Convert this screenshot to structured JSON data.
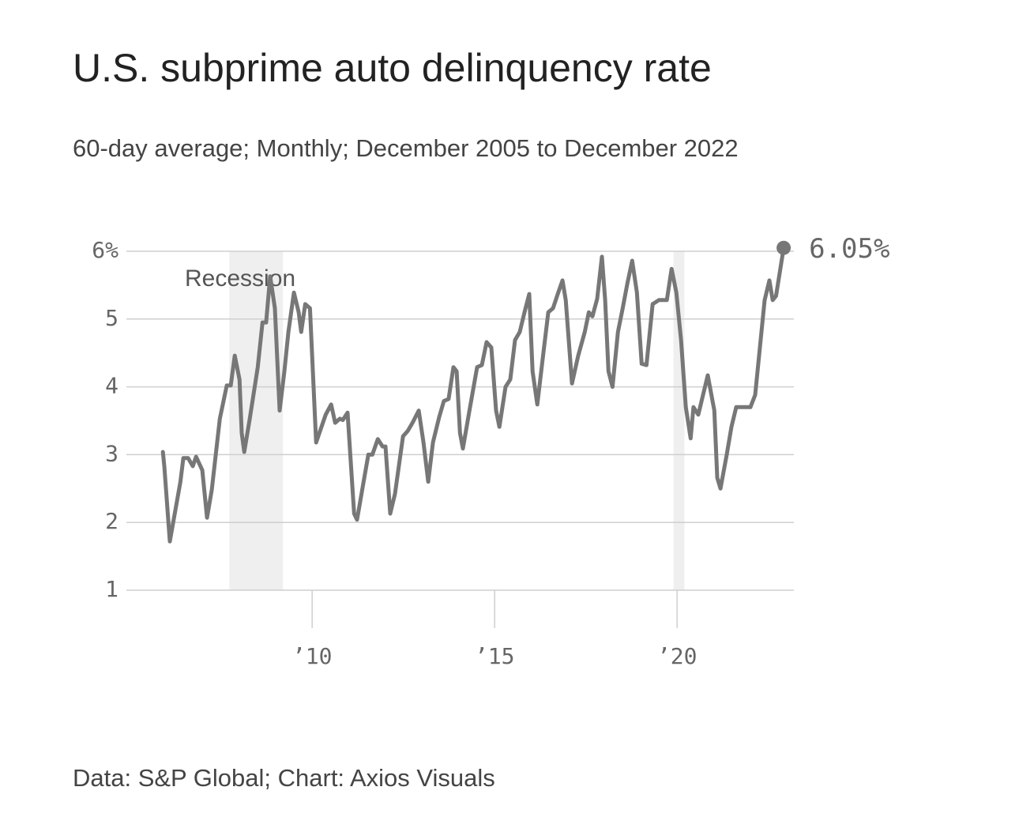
{
  "chart_data": {
    "type": "line",
    "title": "U.S. subprime auto delinquency rate",
    "subtitle": "60-day average; Monthly; December 2005 to December 2022",
    "source": "Data: S&P Global; Chart: Axios Visuals",
    "recession_label": "Recession",
    "recessions": [
      [
        2007.73,
        2009.2
      ],
      [
        2019.9,
        2020.2
      ]
    ],
    "color": "#777777",
    "recession_color": "#efefef",
    "grid": true,
    "xlim": [
      2004.91,
      2023.2
    ],
    "xticks": [
      {
        "value": 2010,
        "label": "’10"
      },
      {
        "value": 2015,
        "label": "’15"
      },
      {
        "value": 2020,
        "label": "’20"
      }
    ],
    "ylim": [
      1,
      6
    ],
    "yticks": [
      1,
      2,
      3,
      4,
      5,
      {
        "value": 6,
        "label": "6%"
      }
    ],
    "x": [
      2005.91,
      2005.95,
      2006.1,
      2006.39,
      2006.47,
      2006.6,
      2006.73,
      2006.82,
      2006.99,
      2007.12,
      2007.25,
      2007.47,
      2007.66,
      2007.77,
      2007.88,
      2008.01,
      2008.07,
      2008.14,
      2008.29,
      2008.51,
      2008.64,
      2008.74,
      2008.85,
      2008.98,
      2009.11,
      2009.24,
      2009.35,
      2009.5,
      2009.63,
      2009.7,
      2009.81,
      2009.94,
      2010.11,
      2010.37,
      2010.52,
      2010.63,
      2010.76,
      2010.84,
      2010.97,
      2011.15,
      2011.23,
      2011.41,
      2011.54,
      2011.65,
      2011.8,
      2011.93,
      2012.01,
      2012.14,
      2012.27,
      2012.49,
      2012.62,
      2012.75,
      2012.92,
      2013.05,
      2013.18,
      2013.31,
      2013.48,
      2013.61,
      2013.74,
      2013.87,
      2013.96,
      2014.05,
      2014.13,
      2014.31,
      2014.52,
      2014.65,
      2014.78,
      2014.91,
      2015.04,
      2015.13,
      2015.3,
      2015.43,
      2015.56,
      2015.69,
      2015.82,
      2015.95,
      2016.04,
      2016.17,
      2016.34,
      2016.47,
      2016.6,
      2016.73,
      2016.86,
      2016.95,
      2017.12,
      2017.29,
      2017.47,
      2017.58,
      2017.68,
      2017.81,
      2017.94,
      2018.03,
      2018.12,
      2018.23,
      2018.38,
      2018.51,
      2018.64,
      2018.77,
      2018.9,
      2019.03,
      2019.16,
      2019.33,
      2019.5,
      2019.72,
      2019.85,
      2019.98,
      2020.11,
      2020.24,
      2020.37,
      2020.45,
      2020.58,
      2020.71,
      2020.84,
      2021.02,
      2021.1,
      2021.19,
      2021.36,
      2021.49,
      2021.62,
      2022.01,
      2022.14,
      2022.27,
      2022.4,
      2022.53,
      2022.62,
      2022.71,
      2022.92
    ],
    "values": [
      3.04,
      2.83,
      1.72,
      2.6,
      2.95,
      2.95,
      2.83,
      2.97,
      2.77,
      2.07,
      2.48,
      3.53,
      4.02,
      4.02,
      4.46,
      4.11,
      3.32,
      3.04,
      3.53,
      4.29,
      4.95,
      4.95,
      5.63,
      5.16,
      3.65,
      4.23,
      4.81,
      5.39,
      5.1,
      4.81,
      5.22,
      5.16,
      3.18,
      3.59,
      3.74,
      3.47,
      3.53,
      3.51,
      3.62,
      2.13,
      2.04,
      2.6,
      3.0,
      3.0,
      3.23,
      3.12,
      3.12,
      2.13,
      2.42,
      3.27,
      3.35,
      3.47,
      3.65,
      3.18,
      2.6,
      3.18,
      3.55,
      3.79,
      3.82,
      4.29,
      4.23,
      3.32,
      3.09,
      3.65,
      4.29,
      4.32,
      4.66,
      4.58,
      3.65,
      3.41,
      4.0,
      4.11,
      4.69,
      4.81,
      5.1,
      5.37,
      4.23,
      3.74,
      4.52,
      5.1,
      5.16,
      5.37,
      5.57,
      5.28,
      4.05,
      4.46,
      4.81,
      5.1,
      5.04,
      5.3,
      5.92,
      5.28,
      4.23,
      4.0,
      4.81,
      5.16,
      5.53,
      5.86,
      5.39,
      4.34,
      4.32,
      5.22,
      5.28,
      5.28,
      5.74,
      5.39,
      4.69,
      3.7,
      3.24,
      3.7,
      3.59,
      3.88,
      4.17,
      3.65,
      2.66,
      2.5,
      3.0,
      3.41,
      3.7,
      3.7,
      3.88,
      4.58,
      5.28,
      5.57,
      5.28,
      5.34,
      6.05
    ],
    "value_labels": [
      null,
      null,
      null,
      null,
      null,
      null,
      null,
      null,
      null,
      null,
      null,
      null,
      null,
      null,
      null,
      null,
      null,
      null,
      null,
      null,
      null,
      null,
      null,
      null,
      null,
      null,
      null,
      null,
      null,
      null,
      null,
      null,
      null,
      null,
      null,
      null,
      null,
      null,
      null,
      null,
      null,
      null,
      null,
      null,
      null,
      null,
      null,
      null,
      null,
      null,
      null,
      null,
      null,
      null,
      null,
      null,
      null,
      null,
      null,
      null,
      null,
      null,
      null,
      null,
      null,
      null,
      null,
      null,
      null,
      null,
      null,
      null,
      null,
      null,
      null,
      null,
      null,
      null,
      null,
      null,
      null,
      null,
      null,
      null,
      null,
      null,
      null,
      null,
      null,
      null,
      null,
      null,
      null,
      null,
      null,
      null,
      null,
      null,
      null,
      null,
      null,
      null,
      null,
      null,
      null,
      null,
      null,
      null,
      null,
      null,
      null,
      null,
      null,
      null,
      null,
      null,
      null,
      null,
      null,
      null,
      null,
      null,
      null,
      null,
      null,
      null,
      "6.05%"
    ]
  }
}
